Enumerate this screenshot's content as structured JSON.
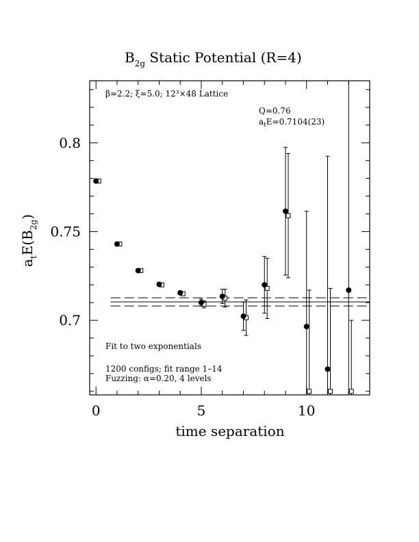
{
  "chart_data": {
    "type": "scatter",
    "title": {
      "main": "B",
      "sub": "2g",
      "rest": " Static Potential (R=4)"
    },
    "xlabel": "time separation",
    "ylabel": {
      "main": "a",
      "sub1": "t",
      "mid": "E(B",
      "sub2": "2g",
      "end": ")"
    },
    "xlim": [
      -0.3,
      13.0
    ],
    "ylim": [
      0.658,
      0.835
    ],
    "x_ticks": [
      0,
      5,
      10
    ],
    "x_tick_labels": [
      "0",
      "5",
      "10"
    ],
    "y_ticks": [
      0.7,
      0.75,
      0.8
    ],
    "y_tick_labels": [
      "0.7",
      "0.75",
      "0.8"
    ],
    "annotations": {
      "lattice": "β=2.2; ξ=5.0; 12³×48 Lattice",
      "q": "Q=0.76",
      "fit_value": {
        "prefix": "a",
        "sub": "t",
        "rest": "E=0.7104(23)"
      },
      "fit_type": "Fit to two exponentials",
      "configs": "1200 configs; fit range 1–14",
      "fuzzing": "Fuzzing: α=0.20, 4 levels"
    },
    "fit": {
      "value": 0.7104,
      "error": 0.0023,
      "x_range": [
        1,
        14
      ]
    },
    "series": [
      {
        "marker": "filled-circle",
        "points": [
          {
            "x": 0,
            "y": 0.7785,
            "err": 0.001
          },
          {
            "x": 1,
            "y": 0.743,
            "err": 0.001
          },
          {
            "x": 2,
            "y": 0.728,
            "err": 0.001
          },
          {
            "x": 3,
            "y": 0.7203,
            "err": 0.001
          },
          {
            "x": 4,
            "y": 0.7155,
            "err": 0.001
          },
          {
            "x": 5,
            "y": 0.71,
            "err": 0.002
          },
          {
            "x": 6,
            "y": 0.7135,
            "err": 0.004
          },
          {
            "x": 7,
            "y": 0.7023,
            "err": 0.008
          },
          {
            "x": 8,
            "y": 0.72,
            "err": 0.016
          },
          {
            "x": 9,
            "y": 0.7615,
            "err": 0.036
          },
          {
            "x": 10,
            "y": 0.6965,
            "err": 0.065
          },
          {
            "x": 11,
            "y": 0.6725,
            "err": 0.12
          },
          {
            "x": 12,
            "y": 0.717,
            "err": 0.3
          }
        ]
      },
      {
        "marker": "open-square",
        "points": [
          {
            "x": 0,
            "y": 0.7785,
            "err": 0.001
          },
          {
            "x": 1,
            "y": 0.743,
            "err": 0.001
          },
          {
            "x": 2,
            "y": 0.728,
            "err": 0.001
          },
          {
            "x": 3,
            "y": 0.72,
            "err": 0.001
          },
          {
            "x": 4,
            "y": 0.715,
            "err": 0.001
          },
          {
            "x": 5,
            "y": 0.709,
            "err": 0.002
          },
          {
            "x": 6,
            "y": 0.7125,
            "err": 0.005
          },
          {
            "x": 7,
            "y": 0.7015,
            "err": 0.01
          },
          {
            "x": 8,
            "y": 0.718,
            "err": 0.017
          },
          {
            "x": 9,
            "y": 0.759,
            "err": 0.035
          },
          {
            "x": 10,
            "y": 0.66,
            "err": 0.057
          },
          {
            "x": 11,
            "y": 0.66,
            "err": 0.058
          },
          {
            "x": 12,
            "y": 0.66,
            "err": 0.04
          }
        ]
      }
    ]
  }
}
